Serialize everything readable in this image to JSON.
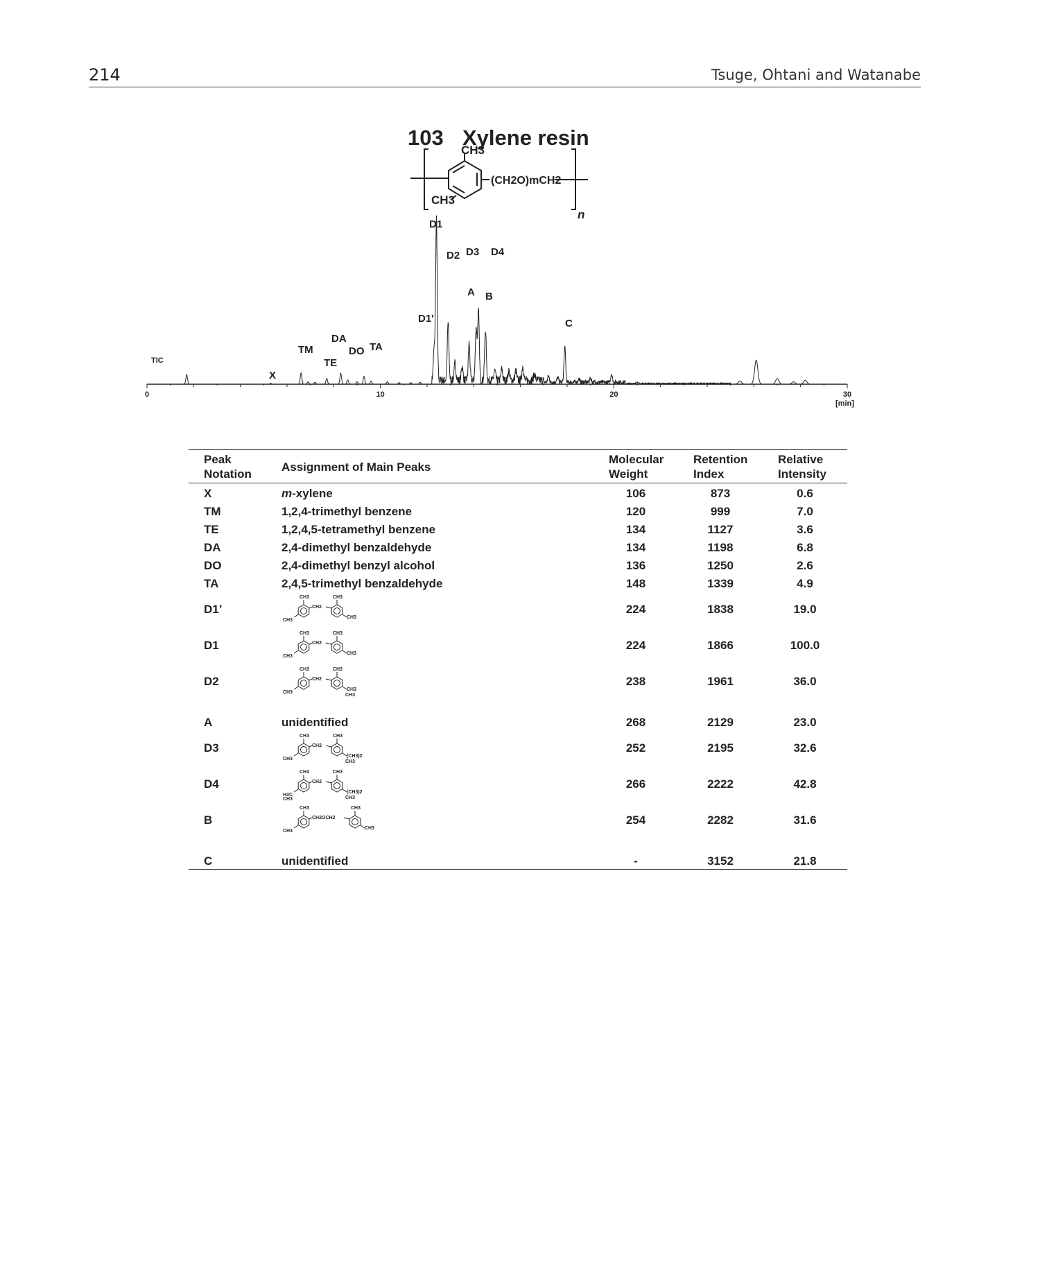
{
  "header": {
    "page_number": "214",
    "authors": "Tsuge, Ohtani and Watanabe"
  },
  "figure": {
    "number": "103",
    "title": "Xylene resin",
    "structure": {
      "substituent_top": "CH3",
      "substituent_bottom": "CH3",
      "chain": "(CH2O)mCH2",
      "repeat_subscript": "n"
    },
    "trace_label": "TIC",
    "axis_unit": "[min]"
  },
  "chart_data": {
    "type": "line",
    "title": "Xylene resin",
    "xlabel": "[min]",
    "ylabel": "",
    "series_name": "TIC",
    "xlim": [
      0,
      30
    ],
    "x_ticks": [
      0,
      10,
      20,
      30
    ],
    "ylim": [
      0,
      100
    ],
    "peaks": [
      {
        "label": "X",
        "rt": 5.3,
        "intensity": 0.6
      },
      {
        "label": "TM",
        "rt": 6.6,
        "intensity": 7.0
      },
      {
        "label": "TE",
        "rt": 7.7,
        "intensity": 3.6
      },
      {
        "label": "DA",
        "rt": 8.3,
        "intensity": 6.8
      },
      {
        "label": "DO",
        "rt": 8.6,
        "intensity": 2.6
      },
      {
        "label": "TA",
        "rt": 9.3,
        "intensity": 4.9
      },
      {
        "label": "D1'",
        "rt": 12.3,
        "intensity": 19.0
      },
      {
        "label": "D1",
        "rt": 12.4,
        "intensity": 100.0
      },
      {
        "label": "D2",
        "rt": 12.9,
        "intensity": 36.0
      },
      {
        "label": "A",
        "rt": 13.8,
        "intensity": 23.0
      },
      {
        "label": "D3",
        "rt": 14.1,
        "intensity": 32.6
      },
      {
        "label": "D4",
        "rt": 14.2,
        "intensity": 42.8
      },
      {
        "label": "B",
        "rt": 14.5,
        "intensity": 31.6
      },
      {
        "label": "C",
        "rt": 17.9,
        "intensity": 21.8
      }
    ]
  },
  "table": {
    "headers": {
      "notation": [
        "Peak",
        "Notation"
      ],
      "assignment": "Assignment of Main Peaks",
      "weight": [
        "Molecular",
        "Weight"
      ],
      "index": [
        "Retention",
        "Index"
      ],
      "intensity": [
        "Relative",
        "Intensity"
      ]
    },
    "rows": [
      {
        "notation": "X",
        "assignment_italic": "m",
        "assignment": "-xylene",
        "weight": "106",
        "index": "873",
        "intensity": "0.6"
      },
      {
        "notation": "TM",
        "assignment": "1,2,4-trimethyl benzene",
        "weight": "120",
        "index": "999",
        "intensity": "7.0"
      },
      {
        "notation": "TE",
        "assignment": "1,2,4,5-tetramethyl benzene",
        "weight": "134",
        "index": "1127",
        "intensity": "3.6"
      },
      {
        "notation": "DA",
        "assignment": "2,4-dimethyl benzaldehyde",
        "weight": "134",
        "index": "1198",
        "intensity": "6.8"
      },
      {
        "notation": "DO",
        "assignment": "2,4-dimethyl benzyl alcohol",
        "weight": "136",
        "index": "1250",
        "intensity": "2.6"
      },
      {
        "notation": "TA",
        "assignment": "2,4,5-trimethyl benzaldehyde",
        "weight": "148",
        "index": "1339",
        "intensity": "4.9"
      },
      {
        "notation": "D1’",
        "structure": {
          "top_left": "CH3",
          "top_right": "CH3",
          "bridge": "CH2",
          "left": "CH3",
          "right": "CH3"
        },
        "weight": "224",
        "index": "1838",
        "intensity": "19.0"
      },
      {
        "notation": "D1",
        "structure": {
          "top_left": "CH3",
          "top_right": "CH3",
          "bridge": "CH2",
          "left": "CH3",
          "right": "CH3"
        },
        "weight": "224",
        "index": "1866",
        "intensity": "100.0"
      },
      {
        "notation": "D2",
        "structure": {
          "top_left": "CH3",
          "top_right": "CH3",
          "bridge": "CH2",
          "left": "CH3",
          "right": "CH3",
          "right2": "CH3"
        },
        "weight": "238",
        "index": "1961",
        "intensity": "36.0"
      },
      {
        "notation": "A",
        "assignment": "unidentified",
        "weight": "268",
        "index": "2129",
        "intensity": "23.0"
      },
      {
        "notation": "D3",
        "structure": {
          "top_left": "CH3",
          "top_right": "CH3",
          "bridge": "CH2",
          "left": "CH3",
          "right": "(CH3)2",
          "right2": "CH3"
        },
        "weight": "252",
        "index": "2195",
        "intensity": "32.6"
      },
      {
        "notation": "D4",
        "structure": {
          "top_left": "CH3",
          "top_right": "CH3",
          "bridge": "CH2",
          "left": "H3C",
          "left2": "CH3",
          "right": "(CH3)2",
          "right2": "CH3"
        },
        "weight": "266",
        "index": "2222",
        "intensity": "42.8"
      },
      {
        "notation": "B",
        "structure": {
          "top_left": "CH3",
          "top_right": "CH3",
          "bridge": "CH2OCH2",
          "left": "CH3",
          "right": "CH3"
        },
        "weight": "254",
        "index": "2282",
        "intensity": "31.6"
      },
      {
        "notation": "C",
        "assignment": "unidentified",
        "weight": "-",
        "index": "3152",
        "intensity": "21.8"
      }
    ]
  }
}
